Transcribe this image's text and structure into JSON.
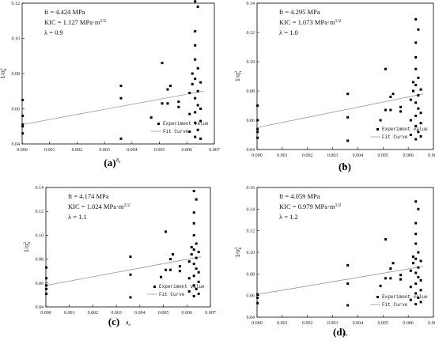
{
  "chart_data": [
    {
      "type": "scatter",
      "panel_label": "(a)",
      "title": "",
      "xlabel": "a",
      "xlabel_sub": "e",
      "ylabel": "1/σ",
      "ylabel_sup": "2",
      "ylabel_sub": "n",
      "xlim": [
        0,
        0.007
      ],
      "ylim": [
        0.04,
        0.12
      ],
      "x_ticks": [
        "0.000",
        "0.001",
        "0.002",
        "0.003",
        "0.004",
        "0.005",
        "0.006",
        "0.007"
      ],
      "y_ticks": [
        "0.04",
        "0.06",
        "0.08",
        "0.10",
        "0.12"
      ],
      "grid": false,
      "legend_position": "bottom-right",
      "annotations": [
        "ft = 4.424 MPa",
        "KIC = 1.127 MPa·m",
        "λ = 0.9"
      ],
      "annotation_sup": "1/2",
      "fit_line": {
        "x": [
          0,
          0.0066
        ],
        "y": [
          0.051,
          0.07
        ]
      },
      "series": [
        {
          "name": "Experiment value",
          "points": [
            [
              2e-05,
              0.046
            ],
            [
              2e-05,
              0.05
            ],
            [
              2e-05,
              0.051
            ],
            [
              2e-05,
              0.056
            ],
            [
              2e-05,
              0.065
            ],
            [
              0.0036,
              0.043
            ],
            [
              0.0036,
              0.066
            ],
            [
              0.0036,
              0.073
            ],
            [
              0.0047,
              0.055
            ],
            [
              0.0051,
              0.063
            ],
            [
              0.0051,
              0.086
            ],
            [
              0.0053,
              0.063
            ],
            [
              0.0053,
              0.071
            ],
            [
              0.0054,
              0.073
            ],
            [
              0.0057,
              0.061
            ],
            [
              0.0057,
              0.064
            ],
            [
              0.0061,
              0.047
            ],
            [
              0.0061,
              0.057
            ],
            [
              0.0061,
              0.069
            ],
            [
              0.0062,
              0.074
            ],
            [
              0.0062,
              0.08
            ],
            [
              0.0063,
              0.044
            ],
            [
              0.0063,
              0.052
            ],
            [
              0.0063,
              0.058
            ],
            [
              0.0063,
              0.066
            ],
            [
              0.0063,
              0.077
            ],
            [
              0.0063,
              0.088
            ],
            [
              0.0063,
              0.096
            ],
            [
              0.0063,
              0.104
            ],
            [
              0.0063,
              0.121
            ],
            [
              0.0064,
              0.048
            ],
            [
              0.0064,
              0.062
            ],
            [
              0.0064,
              0.07
            ],
            [
              0.0064,
              0.083
            ],
            [
              0.0064,
              0.118
            ],
            [
              0.0065,
              0.043
            ],
            [
              0.0065,
              0.053
            ],
            [
              0.0065,
              0.06
            ],
            [
              0.0065,
              0.075
            ]
          ]
        },
        {
          "name": "Fit Curve"
        }
      ]
    },
    {
      "type": "scatter",
      "panel_label": "(b)",
      "title": "",
      "xlabel": "a",
      "xlabel_sub": "e",
      "ylabel": "1/σ",
      "ylabel_sup": "2",
      "ylabel_sub": "n",
      "xlim": [
        0,
        0.007
      ],
      "ylim": [
        0.04,
        0.14
      ],
      "x_ticks": [
        "0.000",
        "0.001",
        "0.002",
        "0.003",
        "0.004",
        "0.005",
        "0.006",
        "0.007"
      ],
      "y_ticks": [
        "0.04",
        "0.06",
        "0.08",
        "0.10",
        "0.12",
        "0.14"
      ],
      "grid": false,
      "legend_position": "bottom-right",
      "annotations": [
        "ft = 4.295 MPa",
        "KIC = 1.073 MPa·m",
        "λ = 1.0"
      ],
      "annotation_sup": "1/2",
      "fit_line": {
        "x": [
          0,
          0.0066
        ],
        "y": [
          0.055,
          0.078
        ]
      },
      "series": [
        {
          "name": "Experiment value",
          "points": [
            [
              2e-05,
              0.048
            ],
            [
              2e-05,
              0.052
            ],
            [
              2e-05,
              0.054
            ],
            [
              2e-05,
              0.06
            ],
            [
              2e-05,
              0.07
            ],
            [
              0.0036,
              0.046
            ],
            [
              0.0036,
              0.062
            ],
            [
              0.0036,
              0.078
            ],
            [
              0.0049,
              0.06
            ],
            [
              0.0051,
              0.067
            ],
            [
              0.0051,
              0.095
            ],
            [
              0.0053,
              0.067
            ],
            [
              0.0053,
              0.076
            ],
            [
              0.0054,
              0.078
            ],
            [
              0.0057,
              0.066
            ],
            [
              0.0057,
              0.069
            ],
            [
              0.0061,
              0.05
            ],
            [
              0.0061,
              0.06
            ],
            [
              0.0061,
              0.074
            ],
            [
              0.0062,
              0.08
            ],
            [
              0.0062,
              0.086
            ],
            [
              0.0063,
              0.047
            ],
            [
              0.0063,
              0.056
            ],
            [
              0.0063,
              0.063
            ],
            [
              0.0063,
              0.072
            ],
            [
              0.0063,
              0.084
            ],
            [
              0.0063,
              0.095
            ],
            [
              0.0063,
              0.103
            ],
            [
              0.0063,
              0.113
            ],
            [
              0.0063,
              0.129
            ],
            [
              0.0064,
              0.052
            ],
            [
              0.0064,
              0.068
            ],
            [
              0.0064,
              0.077
            ],
            [
              0.0064,
              0.089
            ],
            [
              0.0064,
              0.122
            ],
            [
              0.0065,
              0.049
            ],
            [
              0.0065,
              0.058
            ],
            [
              0.0065,
              0.065
            ],
            [
              0.0065,
              0.081
            ]
          ]
        },
        {
          "name": "Fit Curve"
        }
      ]
    },
    {
      "type": "scatter",
      "panel_label": "(c)",
      "title": "",
      "xlabel": "a",
      "xlabel_sub": "e",
      "ylabel": "1/σ",
      "ylabel_sup": "2",
      "ylabel_sub": "n",
      "xlim": [
        0,
        0.007
      ],
      "ylim": [
        0.04,
        0.14
      ],
      "x_ticks": [
        "0.000",
        "0.001",
        "0.002",
        "0.003",
        "0.004",
        "0.005",
        "0.006",
        "0.007"
      ],
      "y_ticks": [
        "0.04",
        "0.06",
        "0.08",
        "0.10",
        "0.12",
        "0.14"
      ],
      "grid": false,
      "legend_position": "bottom-right",
      "annotations": [
        "ft = 4.174  MPa",
        "KIC = 1.024  MPa·m",
        "λ = 1.1"
      ],
      "annotation_sup": "1/2",
      "fit_line": {
        "x": [
          0,
          0.0066
        ],
        "y": [
          0.058,
          0.082
        ]
      },
      "series": [
        {
          "name": "Experiment value",
          "points": [
            [
              2e-05,
              0.051
            ],
            [
              2e-05,
              0.055
            ],
            [
              2e-05,
              0.058
            ],
            [
              2e-05,
              0.064
            ],
            [
              2e-05,
              0.073
            ],
            [
              0.0036,
              0.048
            ],
            [
              0.0036,
              0.067
            ],
            [
              0.0036,
              0.082
            ],
            [
              0.0049,
              0.065
            ],
            [
              0.0051,
              0.071
            ],
            [
              0.0051,
              0.103
            ],
            [
              0.0053,
              0.071
            ],
            [
              0.0053,
              0.08
            ],
            [
              0.0054,
              0.084
            ],
            [
              0.0057,
              0.07
            ],
            [
              0.0057,
              0.074
            ],
            [
              0.0061,
              0.053
            ],
            [
              0.0061,
              0.064
            ],
            [
              0.0061,
              0.078
            ],
            [
              0.0062,
              0.084
            ],
            [
              0.0062,
              0.09
            ],
            [
              0.0063,
              0.049
            ],
            [
              0.0063,
              0.058
            ],
            [
              0.0063,
              0.066
            ],
            [
              0.0063,
              0.076
            ],
            [
              0.0063,
              0.088
            ],
            [
              0.0063,
              0.1
            ],
            [
              0.0063,
              0.11
            ],
            [
              0.0063,
              0.119
            ],
            [
              0.0063,
              0.137
            ],
            [
              0.0064,
              0.055
            ],
            [
              0.0064,
              0.072
            ],
            [
              0.0064,
              0.081
            ],
            [
              0.0064,
              0.093
            ],
            [
              0.0064,
              0.13
            ],
            [
              0.0065,
              0.051
            ],
            [
              0.0065,
              0.061
            ],
            [
              0.0065,
              0.069
            ],
            [
              0.0065,
              0.086
            ]
          ]
        },
        {
          "name": "Fit Curve"
        }
      ]
    },
    {
      "type": "scatter",
      "panel_label": "(d)",
      "title": "",
      "xlabel": "a",
      "xlabel_sub": "e",
      "ylabel": "1/σ",
      "ylabel_sup": "2",
      "ylabel_sub": "n",
      "xlim": [
        0,
        0.007
      ],
      "ylim": [
        0.04,
        0.16
      ],
      "x_ticks": [
        "0.000",
        "0.001",
        "0.002",
        "0.003",
        "0.004",
        "0.005",
        "0.006",
        "0.007"
      ],
      "y_ticks": [
        "0.04",
        "0.06",
        "0.08",
        "0.10",
        "0.12",
        "0.14",
        "0.16"
      ],
      "grid": false,
      "legend_position": "bottom-right",
      "annotations": [
        "ft = 4.059  MPa",
        "KIC = 0.979  MPa·m",
        "λ = 1.2"
      ],
      "annotation_sup": "1/2",
      "fit_line": {
        "x": [
          0,
          0.0066
        ],
        "y": [
          0.061,
          0.087
        ]
      },
      "series": [
        {
          "name": "Experiment value",
          "points": [
            [
              2e-05,
              0.053
            ],
            [
              2e-05,
              0.058
            ],
            [
              2e-05,
              0.061
            ],
            [
              0.0036,
              0.051
            ],
            [
              0.0036,
              0.071
            ],
            [
              0.0036,
              0.088
            ],
            [
              0.0049,
              0.069
            ],
            [
              0.0051,
              0.076
            ],
            [
              0.0051,
              0.112
            ],
            [
              0.0053,
              0.076
            ],
            [
              0.0053,
              0.085
            ],
            [
              0.0054,
              0.09
            ],
            [
              0.0057,
              0.075
            ],
            [
              0.0057,
              0.079
            ],
            [
              0.0061,
              0.056
            ],
            [
              0.0061,
              0.068
            ],
            [
              0.0061,
              0.083
            ],
            [
              0.0062,
              0.09
            ],
            [
              0.0062,
              0.096
            ],
            [
              0.0063,
              0.052
            ],
            [
              0.0063,
              0.062
            ],
            [
              0.0063,
              0.071
            ],
            [
              0.0063,
              0.081
            ],
            [
              0.0063,
              0.094
            ],
            [
              0.0063,
              0.108
            ],
            [
              0.0063,
              0.117
            ],
            [
              0.0063,
              0.127
            ],
            [
              0.0063,
              0.147
            ],
            [
              0.0064,
              0.058
            ],
            [
              0.0064,
              0.077
            ],
            [
              0.0064,
              0.086
            ],
            [
              0.0064,
              0.1
            ],
            [
              0.0064,
              0.14
            ],
            [
              0.0065,
              0.054
            ],
            [
              0.0065,
              0.065
            ],
            [
              0.0065,
              0.074
            ],
            [
              0.0065,
              0.092
            ]
          ]
        },
        {
          "name": "Fit Curve"
        }
      ]
    }
  ]
}
